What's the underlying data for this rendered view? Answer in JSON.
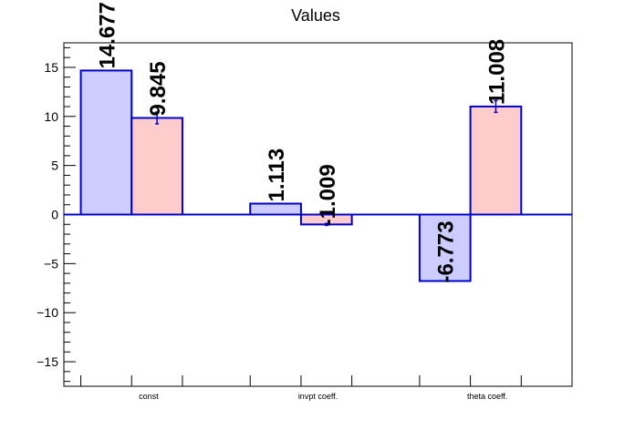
{
  "chart_data": {
    "type": "bar",
    "title": "Values",
    "xlabel": "",
    "ylabel": "",
    "categories": [
      "const",
      "invpt coeff.",
      "theta coeff."
    ],
    "ylim": [
      -17.5,
      17.5
    ],
    "yticks": [
      -15,
      -10,
      -5,
      0,
      5,
      10,
      15
    ],
    "ytick_labels": [
      "−15",
      "−10",
      "−5",
      "0",
      "5",
      "10",
      "15"
    ],
    "grid": false,
    "legend": "none",
    "series": [
      {
        "values": [
          14.677,
          1.113,
          -6.773
        ],
        "value_labels": [
          "14.677",
          "1.113",
          "-6.773"
        ],
        "errors": [
          0,
          0,
          0
        ],
        "fill": "#ccccff",
        "stroke": "#0000cc"
      },
      {
        "values": [
          9.845,
          -1.009,
          11.008
        ],
        "value_labels": [
          "9.845",
          "-1.009",
          "11.008"
        ],
        "errors": [
          0.6,
          0.1,
          0.6
        ],
        "fill": "#ffcccc",
        "stroke": "#0000cc"
      }
    ],
    "zero_line_color": "#0000cc"
  }
}
